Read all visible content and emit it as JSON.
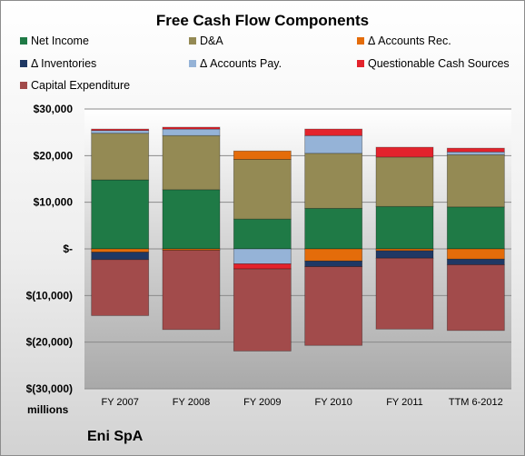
{
  "chart_data": {
    "type": "bar",
    "stacked": true,
    "title": "Free Cash Flow Components",
    "units_label": "millions",
    "company": "Eni SpA",
    "categories": [
      "FY 2007",
      "FY 2008",
      "FY 2009",
      "FY 2010",
      "FY 2011",
      "TTM 6-2012"
    ],
    "ylim": [
      -30000,
      30000
    ],
    "y_ticks": [
      30000,
      20000,
      10000,
      0,
      -10000,
      -20000,
      -30000
    ],
    "y_tick_labels": [
      "$30,000",
      "$20,000",
      "$10,000",
      "$-",
      "$(10,000)",
      "$(20,000)",
      "$(30,000)"
    ],
    "grid": true,
    "legend_position": "top",
    "series": [
      {
        "name": "Net Income",
        "color": "#1f7a46",
        "values": [
          14800,
          12700,
          6400,
          8700,
          9100,
          9000
        ]
      },
      {
        "name": "D&A",
        "color": "#948a54",
        "values": [
          10000,
          11600,
          12800,
          11800,
          10600,
          11200
        ]
      },
      {
        "name": "Δ Accounts Rec.",
        "color": "#e46c0a",
        "values": [
          -700,
          -300,
          1800,
          -2600,
          -400,
          -2200
        ]
      },
      {
        "name": "Δ Inventories",
        "color": "#1f3864",
        "values": [
          -1600,
          0,
          0,
          -1200,
          -1600,
          -1200
        ]
      },
      {
        "name": "Δ Accounts Pay.",
        "color": "#95b3d7",
        "values": [
          600,
          1400,
          -3200,
          3800,
          0,
          600
        ]
      },
      {
        "name": "Questionable Cash Sources",
        "color": "#e3232c",
        "values": [
          300,
          400,
          -1100,
          1400,
          2100,
          800
        ]
      },
      {
        "name": "Capital Expenditure",
        "color": "#a24b4b",
        "values": [
          -12000,
          -17000,
          -17600,
          -16900,
          -15200,
          -14100
        ]
      }
    ]
  }
}
